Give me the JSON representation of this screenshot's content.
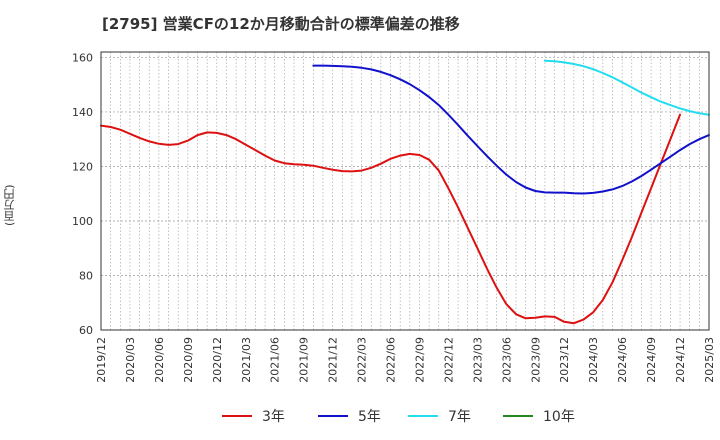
{
  "header": {
    "title": "[2795]  営業CFの12か月移動合計の標準偏差の推移",
    "y_unit": "(百万円)"
  },
  "colors": {
    "3年": "#dd1111",
    "5年": "#1111cc",
    "7年": "#22ddee",
    "10年": "#228822",
    "grid": "#999999",
    "axis": "#333333"
  },
  "chart_data": {
    "type": "line",
    "title": "[2795]  営業CFの12か月移動合計の標準偏差の推移",
    "ylabel": "(百万円)",
    "xlabel": "",
    "ylim": [
      60,
      162
    ],
    "yticks": [
      60,
      80,
      100,
      120,
      140,
      160
    ],
    "x_range": [
      "2019/12",
      "2025/03"
    ],
    "xticks": [
      "2019/12",
      "2020/03",
      "2020/06",
      "2020/09",
      "2020/12",
      "2021/03",
      "2021/06",
      "2021/09",
      "2021/12",
      "2022/03",
      "2022/06",
      "2022/09",
      "2022/12",
      "2023/03",
      "2023/06",
      "2023/09",
      "2023/12",
      "2024/03",
      "2024/06",
      "2024/09",
      "2024/12",
      "2025/03"
    ],
    "grid": true,
    "legend_position": "bottom",
    "series": [
      {
        "name": "3年",
        "color": "#dd1111",
        "points": [
          [
            "2019/12",
            135.0
          ],
          [
            "2020/01",
            134.5
          ],
          [
            "2020/02",
            133.5
          ],
          [
            "2020/03",
            132.0
          ],
          [
            "2020/04",
            130.5
          ],
          [
            "2020/05",
            129.2
          ],
          [
            "2020/06",
            128.3
          ],
          [
            "2020/07",
            127.9
          ],
          [
            "2020/08",
            128.2
          ],
          [
            "2020/09",
            129.5
          ],
          [
            "2020/10",
            131.5
          ],
          [
            "2020/11",
            132.5
          ],
          [
            "2020/12",
            132.3
          ],
          [
            "2021/01",
            131.5
          ],
          [
            "2021/02",
            130.0
          ],
          [
            "2021/03",
            128.0
          ],
          [
            "2021/04",
            126.0
          ],
          [
            "2021/05",
            124.0
          ],
          [
            "2021/06",
            122.2
          ],
          [
            "2021/07",
            121.2
          ],
          [
            "2021/08",
            120.8
          ],
          [
            "2021/09",
            120.6
          ],
          [
            "2021/10",
            120.3
          ],
          [
            "2021/11",
            119.5
          ],
          [
            "2021/12",
            118.8
          ],
          [
            "2022/01",
            118.3
          ],
          [
            "2022/02",
            118.2
          ],
          [
            "2022/03",
            118.5
          ],
          [
            "2022/04",
            119.5
          ],
          [
            "2022/05",
            121.0
          ],
          [
            "2022/06",
            122.8
          ],
          [
            "2022/07",
            124.0
          ],
          [
            "2022/08",
            124.6
          ],
          [
            "2022/09",
            124.2
          ],
          [
            "2022/10",
            122.5
          ],
          [
            "2022/11",
            118.5
          ],
          [
            "2022/12",
            112.0
          ],
          [
            "2023/01",
            105.0
          ],
          [
            "2023/02",
            97.5
          ],
          [
            "2023/03",
            90.0
          ],
          [
            "2023/04",
            82.5
          ],
          [
            "2023/05",
            75.5
          ],
          [
            "2023/06",
            69.5
          ],
          [
            "2023/07",
            65.8
          ],
          [
            "2023/08",
            64.3
          ],
          [
            "2023/09",
            64.5
          ],
          [
            "2023/10",
            65.0
          ],
          [
            "2023/11",
            64.8
          ],
          [
            "2023/12",
            63.0
          ],
          [
            "2024/01",
            62.5
          ],
          [
            "2024/02",
            63.8
          ],
          [
            "2024/03",
            66.5
          ],
          [
            "2024/04",
            71.0
          ],
          [
            "2024/05",
            77.5
          ],
          [
            "2024/06",
            85.5
          ],
          [
            "2024/07",
            94.0
          ],
          [
            "2024/08",
            103.0
          ],
          [
            "2024/09",
            112.0
          ],
          [
            "2024/10",
            121.0
          ],
          [
            "2024/11",
            130.0
          ],
          [
            "2024/12",
            139.0
          ]
        ]
      },
      {
        "name": "5年",
        "color": "#1111cc",
        "points": [
          [
            "2021/10",
            157.0
          ],
          [
            "2021/11",
            157.0
          ],
          [
            "2021/12",
            156.9
          ],
          [
            "2022/01",
            156.8
          ],
          [
            "2022/02",
            156.6
          ],
          [
            "2022/03",
            156.2
          ],
          [
            "2022/04",
            155.6
          ],
          [
            "2022/05",
            154.7
          ],
          [
            "2022/06",
            153.5
          ],
          [
            "2022/07",
            152.0
          ],
          [
            "2022/08",
            150.2
          ],
          [
            "2022/09",
            148.0
          ],
          [
            "2022/10",
            145.5
          ],
          [
            "2022/11",
            142.5
          ],
          [
            "2022/12",
            139.0
          ],
          [
            "2023/01",
            135.2
          ],
          [
            "2023/02",
            131.3
          ],
          [
            "2023/03",
            127.5
          ],
          [
            "2023/04",
            123.8
          ],
          [
            "2023/05",
            120.3
          ],
          [
            "2023/06",
            117.0
          ],
          [
            "2023/07",
            114.3
          ],
          [
            "2023/08",
            112.3
          ],
          [
            "2023/09",
            111.0
          ],
          [
            "2023/10",
            110.5
          ],
          [
            "2023/11",
            110.4
          ],
          [
            "2023/12",
            110.4
          ],
          [
            "2024/01",
            110.2
          ],
          [
            "2024/02",
            110.1
          ],
          [
            "2024/03",
            110.3
          ],
          [
            "2024/04",
            110.8
          ],
          [
            "2024/05",
            111.6
          ],
          [
            "2024/06",
            112.8
          ],
          [
            "2024/07",
            114.5
          ],
          [
            "2024/08",
            116.5
          ],
          [
            "2024/09",
            118.8
          ],
          [
            "2024/10",
            121.2
          ],
          [
            "2024/11",
            123.6
          ],
          [
            "2024/12",
            126.0
          ],
          [
            "2025/01",
            128.2
          ],
          [
            "2025/02",
            130.0
          ],
          [
            "2025/03",
            131.5
          ]
        ]
      },
      {
        "name": "7年",
        "color": "#22ddee",
        "points": [
          [
            "2023/10",
            158.8
          ],
          [
            "2023/11",
            158.6
          ],
          [
            "2023/12",
            158.2
          ],
          [
            "2024/01",
            157.6
          ],
          [
            "2024/02",
            156.8
          ],
          [
            "2024/03",
            155.7
          ],
          [
            "2024/04",
            154.3
          ],
          [
            "2024/05",
            152.7
          ],
          [
            "2024/06",
            150.9
          ],
          [
            "2024/07",
            149.0
          ],
          [
            "2024/08",
            147.1
          ],
          [
            "2024/09",
            145.4
          ],
          [
            "2024/10",
            143.8
          ],
          [
            "2024/11",
            142.5
          ],
          [
            "2024/12",
            141.3
          ],
          [
            "2025/01",
            140.3
          ],
          [
            "2025/02",
            139.5
          ],
          [
            "2025/03",
            139.0
          ]
        ]
      },
      {
        "name": "10年",
        "color": "#228822",
        "points": []
      }
    ]
  }
}
